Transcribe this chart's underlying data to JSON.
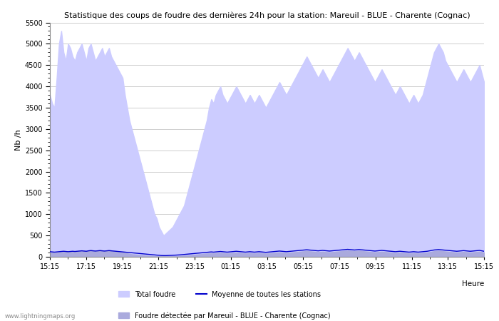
{
  "title": "Statistique des coups de foudre des dernières 24h pour la station: Mareuil - BLUE - Charente (Cognac)",
  "ylabel": "Nb /h",
  "xlabel": "Heure",
  "watermark": "www.lightningmaps.org",
  "x_ticks": [
    "15:15",
    "17:15",
    "19:15",
    "21:15",
    "23:15",
    "01:15",
    "03:15",
    "05:15",
    "07:15",
    "09:15",
    "11:15",
    "13:15",
    "15:15"
  ],
  "ylim": [
    0,
    5500
  ],
  "y_ticks": [
    0,
    500,
    1000,
    1500,
    2000,
    2500,
    3000,
    3500,
    4000,
    4500,
    5000,
    5500
  ],
  "fill_total_color": "#ccccff",
  "fill_station_color": "#aaaadd",
  "line_mean_color": "#0000cc",
  "legend_labels": [
    "Total foudre",
    "Moyenne de toutes les stations",
    "Foudre détectée par Mareuil - BLUE - Charente (Cognac)"
  ],
  "total_foudre": [
    3800,
    3600,
    3500,
    4200,
    5000,
    5300,
    4800,
    4600,
    5000,
    4900,
    4700,
    4600,
    4800,
    4900,
    5000,
    4800,
    4600,
    4900,
    5000,
    4800,
    4600,
    4700,
    4800,
    4900,
    4700,
    4800,
    4900,
    4700,
    4600,
    4500,
    4400,
    4300,
    4200,
    3800,
    3500,
    3200,
    3000,
    2800,
    2600,
    2400,
    2200,
    2000,
    1800,
    1600,
    1400,
    1200,
    1000,
    900,
    700,
    600,
    500,
    550,
    600,
    650,
    700,
    800,
    900,
    1000,
    1100,
    1200,
    1400,
    1600,
    1800,
    2000,
    2200,
    2400,
    2600,
    2800,
    3000,
    3200,
    3500,
    3700,
    3600,
    3800,
    3900,
    4000,
    3800,
    3700,
    3600,
    3700,
    3800,
    3900,
    4000,
    3900,
    3800,
    3700,
    3600,
    3700,
    3800,
    3700,
    3600,
    3700,
    3800,
    3700,
    3600,
    3500,
    3600,
    3700,
    3800,
    3900,
    4000,
    4100,
    4000,
    3900,
    3800,
    3900,
    4000,
    4100,
    4200,
    4300,
    4400,
    4500,
    4600,
    4700,
    4600,
    4500,
    4400,
    4300,
    4200,
    4300,
    4400,
    4300,
    4200,
    4100,
    4200,
    4300,
    4400,
    4500,
    4600,
    4700,
    4800,
    4900,
    4800,
    4700,
    4600,
    4700,
    4800,
    4700,
    4600,
    4500,
    4400,
    4300,
    4200,
    4100,
    4200,
    4300,
    4400,
    4300,
    4200,
    4100,
    4000,
    3900,
    3800,
    3900,
    4000,
    3900,
    3800,
    3700,
    3600,
    3700,
    3800,
    3700,
    3600,
    3700,
    3800,
    4000,
    4200,
    4400,
    4600,
    4800,
    4900,
    5000,
    4900,
    4800,
    4600,
    4500,
    4400,
    4300,
    4200,
    4100,
    4200,
    4300,
    4400,
    4300,
    4200,
    4100,
    4200,
    4300,
    4400,
    4500,
    4300,
    4100
  ],
  "station_foudre": [
    100,
    100,
    90,
    100,
    110,
    120,
    130,
    120,
    110,
    120,
    130,
    120,
    130,
    140,
    150,
    140,
    130,
    150,
    160,
    150,
    140,
    150,
    160,
    150,
    140,
    150,
    160,
    150,
    140,
    130,
    120,
    110,
    100,
    90,
    80,
    70,
    60,
    55,
    50,
    45,
    40,
    35,
    30,
    25,
    20,
    20,
    15,
    15,
    10,
    10,
    10,
    10,
    10,
    10,
    10,
    15,
    15,
    20,
    20,
    25,
    30,
    35,
    40,
    45,
    50,
    55,
    60,
    65,
    70,
    75,
    80,
    85,
    80,
    85,
    90,
    95,
    90,
    85,
    80,
    85,
    90,
    95,
    100,
    95,
    90,
    85,
    80,
    85,
    90,
    85,
    80,
    85,
    90,
    85,
    80,
    75,
    80,
    85,
    90,
    95,
    100,
    105,
    100,
    95,
    90,
    95,
    100,
    105,
    110,
    115,
    120,
    125,
    130,
    135,
    130,
    125,
    120,
    115,
    110,
    115,
    120,
    115,
    110,
    105,
    110,
    115,
    120,
    125,
    130,
    135,
    140,
    145,
    140,
    135,
    130,
    135,
    140,
    135,
    130,
    125,
    120,
    115,
    110,
    105,
    110,
    115,
    120,
    115,
    110,
    105,
    100,
    95,
    90,
    95,
    100,
    95,
    90,
    85,
    80,
    85,
    90,
    85,
    80,
    85,
    90,
    95,
    100,
    110,
    120,
    130,
    135,
    140,
    135,
    130,
    125,
    120,
    115,
    110,
    105,
    100,
    105,
    110,
    115,
    110,
    105,
    100,
    105,
    110,
    115,
    120,
    110,
    100
  ],
  "mean_foudre": [
    120,
    115,
    110,
    115,
    120,
    125,
    130,
    125,
    120,
    125,
    130,
    125,
    130,
    135,
    140,
    135,
    130,
    140,
    145,
    140,
    135,
    140,
    145,
    140,
    135,
    140,
    145,
    140,
    135,
    130,
    125,
    120,
    115,
    110,
    105,
    100,
    95,
    90,
    85,
    80,
    75,
    70,
    65,
    60,
    55,
    50,
    45,
    40,
    35,
    30,
    28,
    28,
    30,
    32,
    35,
    38,
    40,
    45,
    50,
    55,
    60,
    65,
    70,
    75,
    80,
    85,
    90,
    95,
    100,
    105,
    110,
    115,
    110,
    115,
    120,
    125,
    120,
    115,
    110,
    115,
    120,
    125,
    130,
    125,
    120,
    115,
    110,
    115,
    120,
    115,
    110,
    115,
    120,
    115,
    110,
    105,
    110,
    115,
    120,
    125,
    130,
    135,
    130,
    125,
    120,
    125,
    130,
    135,
    140,
    145,
    150,
    155,
    160,
    165,
    160,
    155,
    150,
    145,
    140,
    145,
    150,
    145,
    140,
    135,
    140,
    145,
    150,
    155,
    160,
    165,
    170,
    175,
    170,
    165,
    160,
    165,
    170,
    165,
    160,
    155,
    150,
    145,
    140,
    135,
    140,
    145,
    150,
    145,
    140,
    135,
    130,
    125,
    120,
    125,
    130,
    125,
    120,
    115,
    110,
    115,
    120,
    115,
    110,
    115,
    120,
    125,
    130,
    140,
    150,
    160,
    165,
    170,
    165,
    160,
    155,
    150,
    145,
    140,
    135,
    130,
    135,
    140,
    145,
    140,
    135,
    130,
    135,
    140,
    145,
    150,
    140,
    130
  ]
}
